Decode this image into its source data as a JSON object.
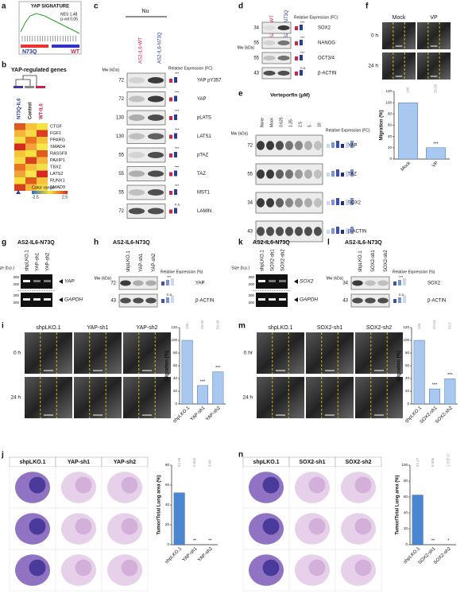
{
  "panels": {
    "a": {
      "letter": "a",
      "title": "YAP SIGNATURE",
      "nes": "NES 1.48",
      "pval": "p-val 0.05",
      "left": "N73Q",
      "right": "WT"
    },
    "b": {
      "letter": "b",
      "title": "YAP-regulated genes",
      "columns": [
        "N73Q-IL6",
        "Control",
        "WT-IL6"
      ],
      "genes": [
        "CTGF",
        "FGF1",
        "PPARG",
        "SMAD4",
        "RASSF8",
        "PAXIP1",
        "TBX2",
        "LATS2",
        "RUNX1",
        "SMAD9"
      ],
      "color_range": "Color range",
      "min": -2.5,
      "max": 2.5
    },
    "c": {
      "letter": "c",
      "header": "Nu",
      "lanes": [
        "AS2-IL6-WT",
        "AS2-IL6-N73Q"
      ],
      "mw": "Mw (kDa)",
      "rel": "Relative Expression (FC)",
      "rows": [
        {
          "mw": 72,
          "label": "YAP pY357",
          "sig": "***"
        },
        {
          "mw": 72,
          "label": "YAP",
          "sig": "***"
        },
        {
          "mw": 130,
          "label": "pLATS",
          "sig": "***"
        },
        {
          "mw": 130,
          "label": "LATS1",
          "sig": "***"
        },
        {
          "mw": 55,
          "label": "pTAZ",
          "sig": "***"
        },
        {
          "mw": 55,
          "label": "TAZ",
          "sig": "***"
        },
        {
          "mw": 55,
          "label": "MST1",
          "sig": "***"
        },
        {
          "mw": 72,
          "label": "LAMIN",
          "sig": "n.s."
        }
      ]
    },
    "d": {
      "letter": "d",
      "lanes": [
        "AS2-IL6-WT",
        "AS2-IL6-N73Q"
      ],
      "mw": "Mw (kDa)",
      "rel": "Relative Expression (FC)",
      "rows": [
        {
          "mw": 34,
          "label": "SOX2",
          "sig": "***"
        },
        {
          "mw": 55,
          "label": "NANOG",
          "sig": "***"
        },
        {
          "mw": 55,
          "label": "OCT3/4",
          "sig": "***"
        },
        {
          "mw": 43,
          "label": "β-ACTIN",
          "sig": "n.s."
        }
      ]
    },
    "e": {
      "letter": "e",
      "header": "Verteporfin (μM)",
      "lanes": [
        "None",
        "Mock",
        "0.625",
        "1.25",
        "2.5",
        "5",
        "10"
      ],
      "mw": "Mw (kDa)",
      "rel": "Relative Expression (FC)",
      "rows": [
        {
          "mw": 72,
          "label": "YAP"
        },
        {
          "mw": 55,
          "label": "TAZ"
        },
        {
          "mw": 34,
          "label": "SOX2"
        },
        {
          "mw": 43,
          "label": "β-ACTIN"
        }
      ]
    },
    "f": {
      "letter": "f",
      "cols": [
        "Mock",
        "VP"
      ],
      "times": [
        "0 h",
        "24 h"
      ],
      "chart": {
        "ylabel": "Migration (%)",
        "categories": [
          "Mock",
          "VP"
        ],
        "values": [
          100,
          20.05
        ],
        "value_labels": [
          "100",
          "20.05"
        ],
        "sig": [
          null,
          "***"
        ],
        "ylim": [
          0,
          120
        ],
        "yticks": [
          0,
          20,
          40,
          60,
          80,
          100,
          120
        ],
        "color": "#a9c8ef"
      }
    },
    "g": {
      "letter": "g",
      "title": "AS2-IL6-N73Q",
      "lanes": [
        "shpLKO.1",
        "YAP-sh1",
        "YAP-sh2"
      ],
      "size": "Size (b.p.)",
      "ticks_top": [
        300,
        200
      ],
      "ticks_bottom": [
        300,
        200
      ],
      "genes": [
        "YAP",
        "GAPDH"
      ]
    },
    "h": {
      "letter": "h",
      "title": "AS2-IL6-N73Q",
      "lanes": [
        "shpLKO.1",
        "YAP-sh1",
        "YAP-sh2"
      ],
      "mw": "Mw (kDa)",
      "rel": "Relative Expression (%)",
      "rows": [
        {
          "mw": 72,
          "label": "YAP",
          "sig": "***"
        },
        {
          "mw": 43,
          "label": "β-ACTIN",
          "sig": "n.s."
        }
      ]
    },
    "i": {
      "letter": "i",
      "cols": [
        "shpLKO.1",
        "YAP-sh1",
        "YAP-sh2"
      ],
      "times": [
        "0 h",
        "24 h"
      ],
      "chart": {
        "ylabel": "Migration (%)",
        "categories": [
          "shpLKO.1",
          "YAP-sh1",
          "YAP-sh2"
        ],
        "values": [
          100,
          28.95,
          50.48
        ],
        "value_labels": [
          "100",
          "28.95",
          "50.48"
        ],
        "sig": [
          null,
          "***",
          "***"
        ],
        "ylim": [
          0,
          120
        ],
        "yticks": [
          0,
          20,
          40,
          60,
          80,
          100,
          120
        ],
        "color": "#a9c8ef"
      }
    },
    "j": {
      "letter": "j",
      "cols": [
        "shpLKO.1",
        "YAP-sh1",
        "YAP-sh2"
      ],
      "chart": {
        "ylabel": "Tumor/Total Lung area (%)",
        "categories": [
          "shpLKO.1",
          "YAP-sh1",
          "YAP-sh2"
        ],
        "values": [
          52.26,
          0.004,
          0.08
        ],
        "value_labels": [
          "52.26",
          "0.004",
          "0.08"
        ],
        "sig": [
          null,
          "**",
          "**"
        ],
        "ylim": [
          0,
          80
        ],
        "yticks": [
          0,
          20,
          40,
          60,
          80
        ],
        "color": "#4a86d1"
      }
    },
    "k": {
      "letter": "k",
      "title": "AS2-IL6-N73Q",
      "lanes": [
        "shpLKO.1",
        "SOX2-sh1",
        "SOX2-sh2"
      ],
      "size": "Size (b.p.)",
      "ticks_top": [
        300,
        200
      ],
      "ticks_bottom": [
        300,
        200
      ],
      "genes": [
        "SOX2",
        "GAPDH"
      ]
    },
    "l": {
      "letter": "l",
      "title": "AS2-IL6-N73Q",
      "lanes": [
        "shpLKO.1",
        "SOX2-sh1",
        "SOX2-sh2"
      ],
      "mw": "Mw (kDa)",
      "rel": "Relative Expression (%)",
      "rows": [
        {
          "mw": 34,
          "label": "SOX2",
          "sig": "***"
        },
        {
          "mw": 43,
          "label": "β-ACTIN",
          "sig": "n.s."
        }
      ]
    },
    "m": {
      "letter": "m",
      "cols": [
        "shpLKO.1",
        "SOX2-sh1",
        "SOX2-sh2"
      ],
      "times": [
        "0 hr",
        "24 h"
      ],
      "chart": {
        "ylabel": "Migration (%)",
        "categories": [
          "shpLKO.1",
          "SOX2-sh1",
          "SOX2-sh2"
        ],
        "values": [
          100,
          23.64,
          39.5
        ],
        "value_labels": [
          "100",
          "23.64",
          "39.5"
        ],
        "sig": [
          null,
          "***",
          "***"
        ],
        "ylim": [
          0,
          120
        ],
        "yticks": [
          0,
          20,
          40,
          60,
          80,
          100,
          120
        ],
        "color": "#a9c8ef"
      }
    },
    "n": {
      "letter": "n",
      "cols": [
        "shpLKO.1",
        "SOX2-sh1",
        "SOX2-sh2"
      ],
      "chart": {
        "ylabel": "Tumor/Total Lung area (%)",
        "categories": [
          "shpLKO.1",
          "SOX2-sh1",
          "SOX2-sh2"
        ],
        "values": [
          62.47,
          0.006,
          1.33e-06
        ],
        "value_labels": [
          "62.47",
          "0.006",
          "1.33E-6"
        ],
        "sig": [
          null,
          "**",
          "*"
        ],
        "ylim": [
          0,
          100
        ],
        "yticks": [
          0,
          20,
          40,
          60,
          80,
          100
        ],
        "color": "#4a86d1"
      }
    }
  }
}
